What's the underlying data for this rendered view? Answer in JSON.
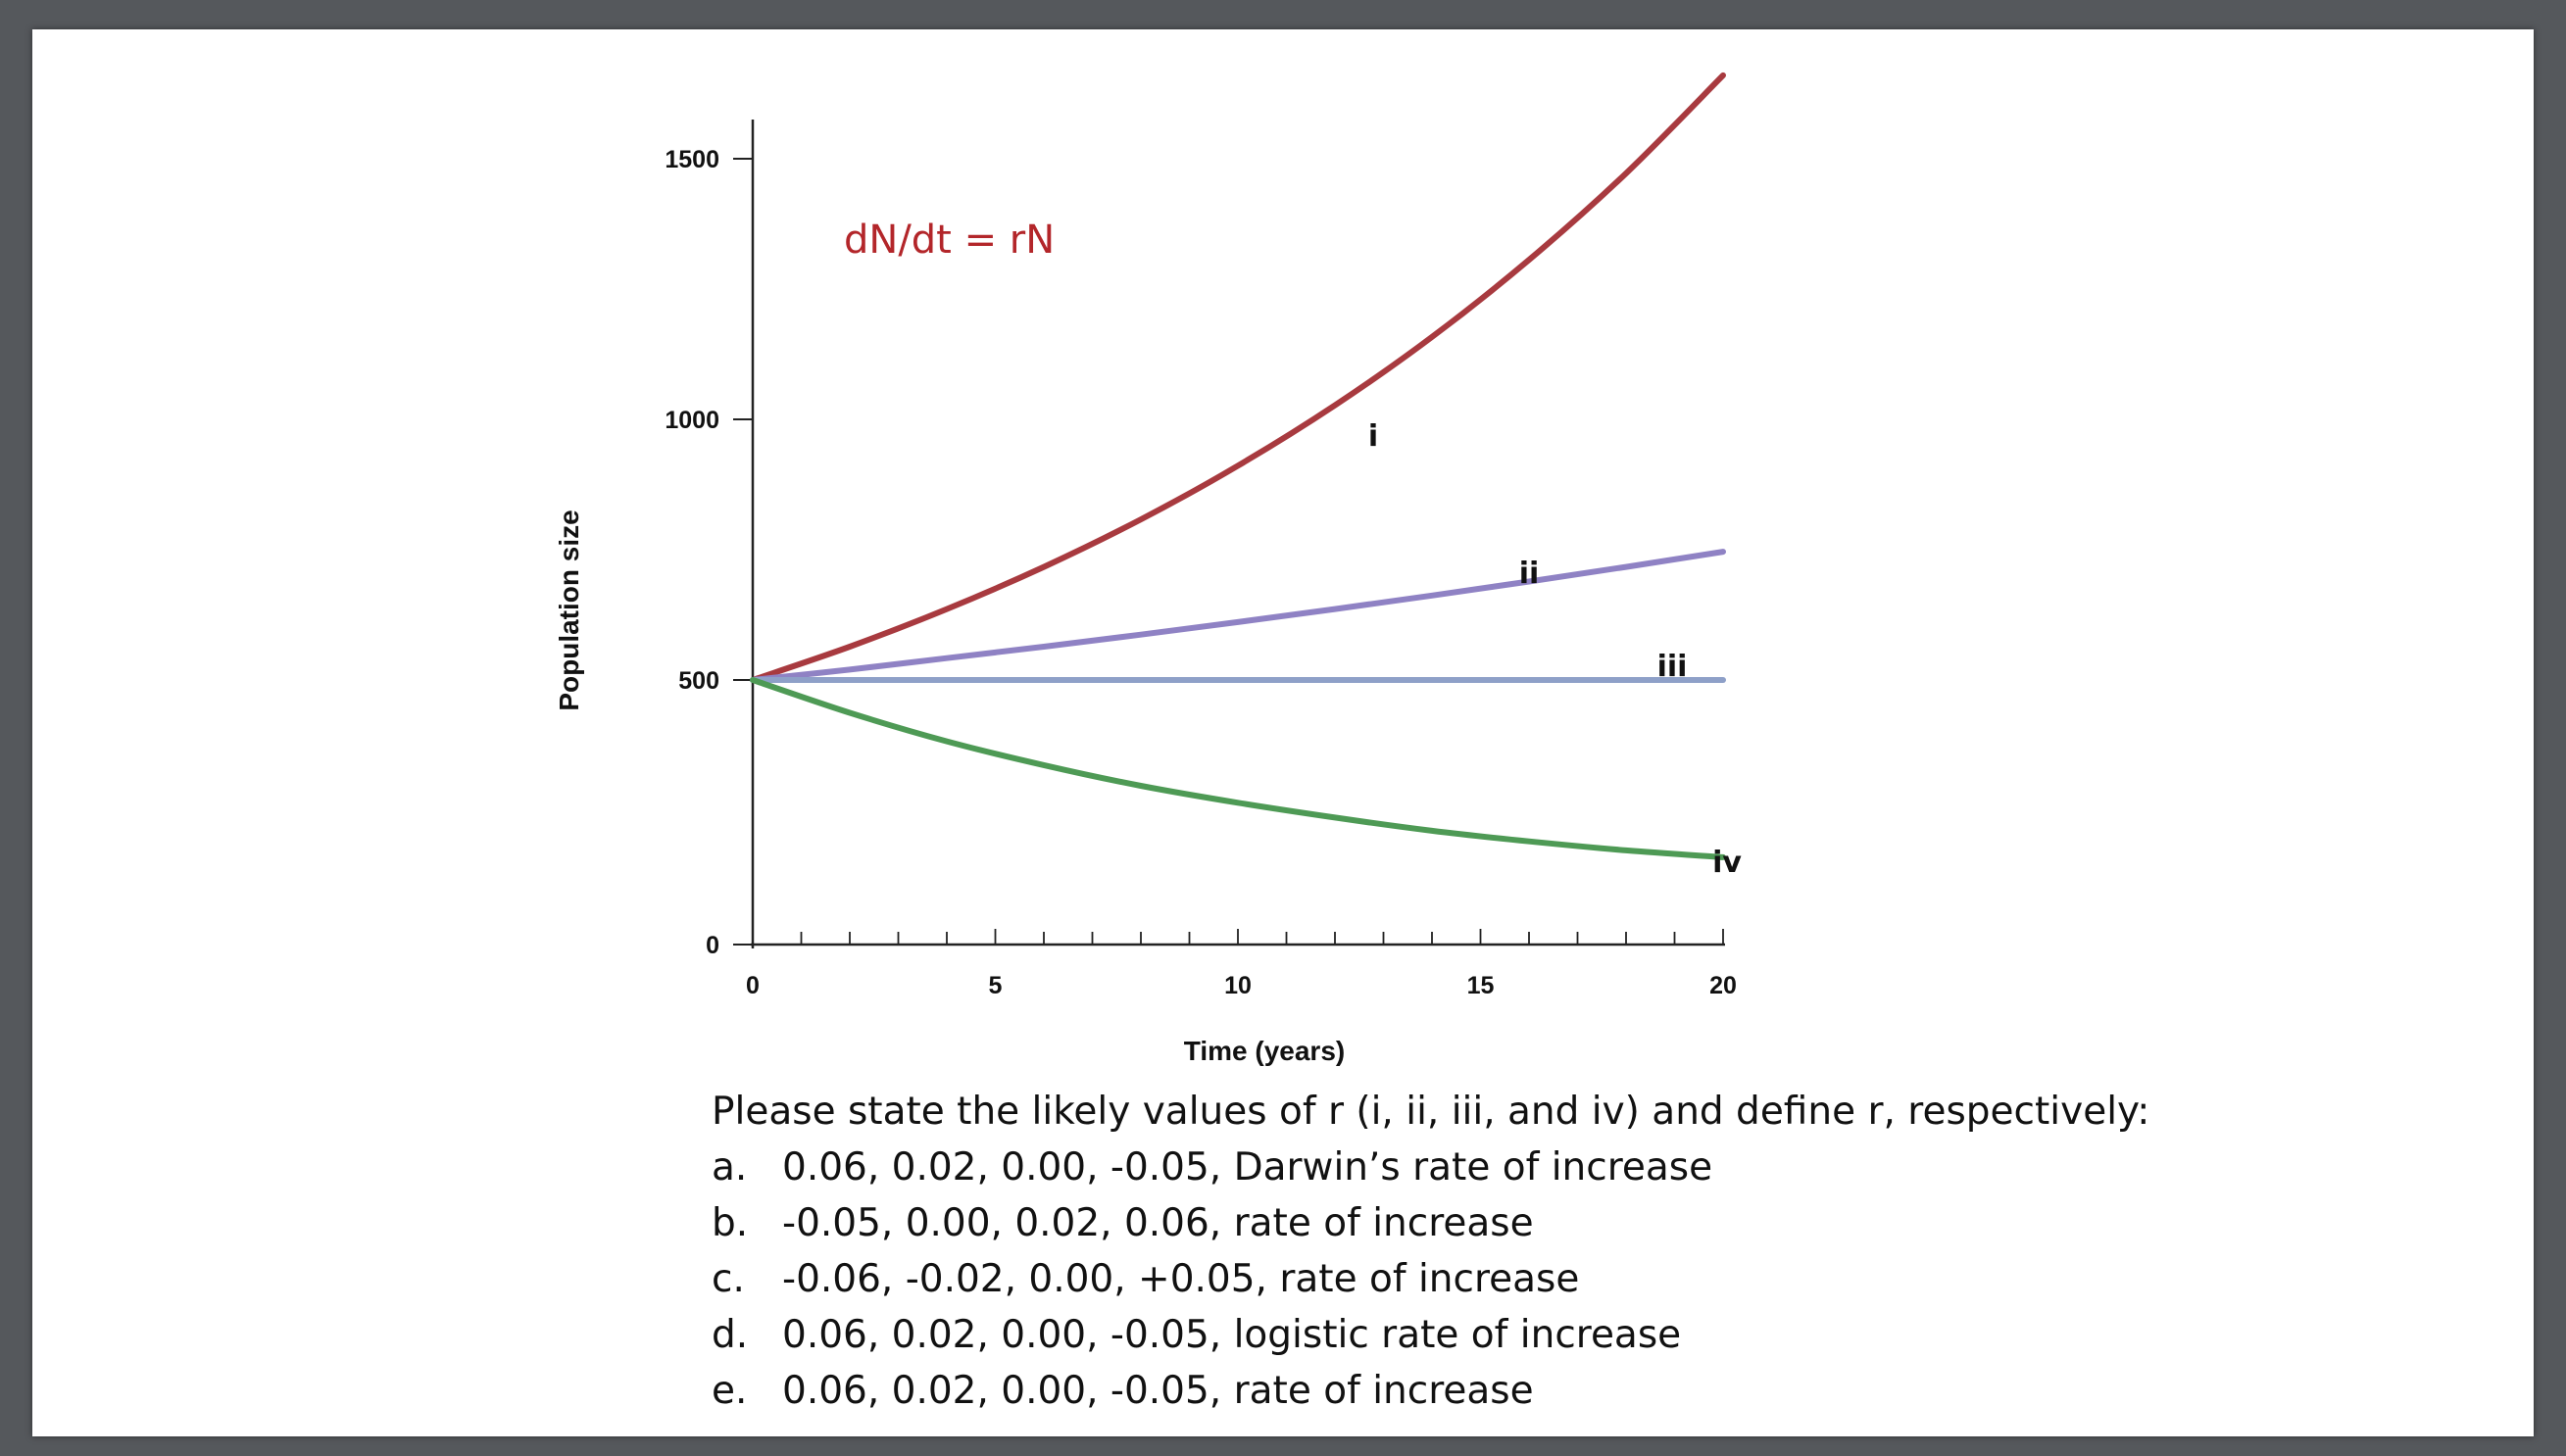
{
  "chart_data": {
    "type": "line",
    "xlabel": "Time (years)",
    "ylabel": "Population size",
    "xlim": [
      0,
      20
    ],
    "ylim": [
      0,
      1600
    ],
    "x_ticks_major": [
      0,
      5,
      10,
      15,
      20
    ],
    "y_ticks": [
      0,
      500,
      1000,
      1500
    ],
    "grid": false,
    "annotation": "dN/dt = rN",
    "series": [
      {
        "name": "i",
        "color": "#a83a3f",
        "x": [
          0,
          2,
          4,
          6,
          8,
          10,
          12,
          14,
          16,
          18,
          20
        ],
        "values": [
          500,
          564,
          636,
          717,
          808,
          911,
          1027,
          1158,
          1306,
          1472,
          1660
        ]
      },
      {
        "name": "ii",
        "color": "#8f82c4",
        "x": [
          0,
          2,
          4,
          6,
          8,
          10,
          12,
          14,
          16,
          18,
          20
        ],
        "values": [
          500,
          520,
          542,
          564,
          587,
          611,
          636,
          662,
          689,
          717,
          746
        ]
      },
      {
        "name": "iii",
        "color": "#8ea0c8",
        "x": [
          0,
          20
        ],
        "values": [
          500,
          500
        ]
      },
      {
        "name": "iv",
        "color": "#4e9a55",
        "x": [
          0,
          2,
          4,
          6,
          8,
          10,
          12,
          14,
          16,
          18,
          20
        ],
        "values": [
          500,
          438,
          384,
          339,
          300,
          268,
          240,
          215,
          195,
          178,
          165
        ]
      }
    ]
  },
  "question": {
    "stem": "Please state the likely values of r (i, ii, iii, and iv) and define r, respectively:",
    "options": [
      {
        "letter": "a.",
        "text": "0.06, 0.02, 0.00, -0.05, Darwin’s rate of increase"
      },
      {
        "letter": "b.",
        "text": "-0.05, 0.00, 0.02, 0.06, rate of increase"
      },
      {
        "letter": "c.",
        "text": "-0.06, -0.02, 0.00, +0.05, rate of increase"
      },
      {
        "letter": "d.",
        "text": "0.06, 0.02, 0.00, -0.05, logistic rate of increase"
      },
      {
        "letter": "e.",
        "text": "0.06, 0.02, 0.00, -0.05, rate of increase"
      }
    ]
  }
}
